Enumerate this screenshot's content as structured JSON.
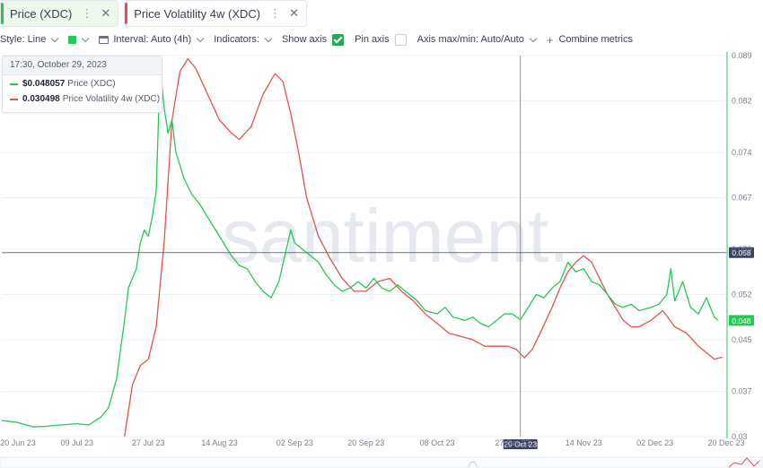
{
  "tabs": [
    {
      "label": "Price (XDC)",
      "color": "#26c953",
      "active": true
    },
    {
      "label": "Price Volatility 4w (XDC)",
      "color": "#e5534b",
      "active": false
    }
  ],
  "toolbar": {
    "style": "Style: Line",
    "interval": "Interval: Auto (4h)",
    "indicators": "Indicators:",
    "show_axis": "Show axis",
    "pin_axis": "Pin axis",
    "axis_maxmin": "Axis max/min: Auto/Auto",
    "combine": "Combine metrics"
  },
  "tooltip": {
    "date": "17:30, October 29, 2023",
    "rows": [
      {
        "value": "$0.048057",
        "label": "Price (XDC)",
        "color": "#26c953"
      },
      {
        "value": "0.030498",
        "label": "Price Volatility 4w (XDC)",
        "color": "#e5534b"
      }
    ]
  },
  "watermark": "santiment.",
  "chart_data": {
    "type": "line",
    "x_ticks": [
      "20 Jun 23",
      "09 Jul 23",
      "27 Jul 23",
      "14 Aug 23",
      "02 Sep 23",
      "20 Sep 23",
      "08 Oct 23",
      "27 Oct 23",
      "14 Nov 23",
      "02 Dec 23",
      "20 Dec 23"
    ],
    "x_range": [
      "2023-06-20",
      "2023-12-20"
    ],
    "y_ticks": [
      "0.089",
      "0.082",
      "0.074",
      "0.067",
      "0.059",
      "0.052",
      "0.045",
      "0.037",
      "0.03"
    ],
    "ylim": [
      0.03,
      0.089
    ],
    "crosshair": {
      "x_label": "29 Oct 23",
      "y_label": "0.058",
      "x_date": "2023-10-29",
      "y": 0.0585
    },
    "last_value_label": "0.048",
    "series": [
      {
        "name": "Price (XDC)",
        "color": "#26c953",
        "points": [
          [
            "2023-06-20",
            0.0325
          ],
          [
            "2023-06-24",
            0.0322
          ],
          [
            "2023-06-28",
            0.0315
          ],
          [
            "2023-07-01",
            0.0316
          ],
          [
            "2023-07-05",
            0.0318
          ],
          [
            "2023-07-09",
            0.032
          ],
          [
            "2023-07-12",
            0.0318
          ],
          [
            "2023-07-15",
            0.033
          ],
          [
            "2023-07-17",
            0.0345
          ],
          [
            "2023-07-19",
            0.039
          ],
          [
            "2023-07-21",
            0.048
          ],
          [
            "2023-07-22",
            0.053
          ],
          [
            "2023-07-24",
            0.056
          ],
          [
            "2023-07-25",
            0.06
          ],
          [
            "2023-07-26",
            0.062
          ],
          [
            "2023-07-27",
            0.061
          ],
          [
            "2023-07-28",
            0.064
          ],
          [
            "2023-07-29",
            0.068
          ],
          [
            "2023-07-30",
            0.087
          ],
          [
            "2023-07-31",
            0.081
          ],
          [
            "2023-08-01",
            0.077
          ],
          [
            "2023-08-02",
            0.079
          ],
          [
            "2023-08-03",
            0.074
          ],
          [
            "2023-08-05",
            0.07
          ],
          [
            "2023-08-07",
            0.0675
          ],
          [
            "2023-08-09",
            0.066
          ],
          [
            "2023-08-11",
            0.064
          ],
          [
            "2023-08-13",
            0.062
          ],
          [
            "2023-08-15",
            0.06
          ],
          [
            "2023-08-17",
            0.058
          ],
          [
            "2023-08-19",
            0.0565
          ],
          [
            "2023-08-21",
            0.056
          ],
          [
            "2023-08-23",
            0.054
          ],
          [
            "2023-08-25",
            0.0525
          ],
          [
            "2023-08-27",
            0.0515
          ],
          [
            "2023-08-29",
            0.054
          ],
          [
            "2023-09-01",
            0.062
          ],
          [
            "2023-09-02",
            0.06
          ],
          [
            "2023-09-04",
            0.059
          ],
          [
            "2023-09-06",
            0.058
          ],
          [
            "2023-09-08",
            0.057
          ],
          [
            "2023-09-10",
            0.055
          ],
          [
            "2023-09-12",
            0.0535
          ],
          [
            "2023-09-14",
            0.0525
          ],
          [
            "2023-09-16",
            0.053
          ],
          [
            "2023-09-18",
            0.054
          ],
          [
            "2023-09-20",
            0.053
          ],
          [
            "2023-09-22",
            0.0545
          ],
          [
            "2023-09-24",
            0.053
          ],
          [
            "2023-09-26",
            0.0525
          ],
          [
            "2023-09-28",
            0.0535
          ],
          [
            "2023-10-01",
            0.052
          ],
          [
            "2023-10-03",
            0.051
          ],
          [
            "2023-10-05",
            0.0495
          ],
          [
            "2023-10-08",
            0.049
          ],
          [
            "2023-10-10",
            0.05
          ],
          [
            "2023-10-12",
            0.0485
          ],
          [
            "2023-10-15",
            0.048
          ],
          [
            "2023-10-17",
            0.0485
          ],
          [
            "2023-10-19",
            0.0475
          ],
          [
            "2023-10-21",
            0.047
          ],
          [
            "2023-10-23",
            0.048
          ],
          [
            "2023-10-25",
            0.049
          ],
          [
            "2023-10-27",
            0.049
          ],
          [
            "2023-10-29",
            0.0481
          ],
          [
            "2023-10-31",
            0.05
          ],
          [
            "2023-11-02",
            0.052
          ],
          [
            "2023-11-04",
            0.0515
          ],
          [
            "2023-11-06",
            0.053
          ],
          [
            "2023-11-08",
            0.054
          ],
          [
            "2023-11-10",
            0.057
          ],
          [
            "2023-11-12",
            0.0555
          ],
          [
            "2023-11-14",
            0.056
          ],
          [
            "2023-11-16",
            0.054
          ],
          [
            "2023-11-18",
            0.0535
          ],
          [
            "2023-11-20",
            0.052
          ],
          [
            "2023-11-22",
            0.0505
          ],
          [
            "2023-11-24",
            0.05
          ],
          [
            "2023-11-26",
            0.0505
          ],
          [
            "2023-11-28",
            0.0495
          ],
          [
            "2023-12-01",
            0.05
          ],
          [
            "2023-12-03",
            0.0505
          ],
          [
            "2023-12-05",
            0.052
          ],
          [
            "2023-12-06",
            0.056
          ],
          [
            "2023-12-07",
            0.051
          ],
          [
            "2023-12-09",
            0.054
          ],
          [
            "2023-12-11",
            0.05
          ],
          [
            "2023-12-13",
            0.049
          ],
          [
            "2023-12-15",
            0.0515
          ],
          [
            "2023-12-17",
            0.0485
          ],
          [
            "2023-12-18",
            0.048
          ]
        ]
      },
      {
        "name": "Price Volatility 4w (XDC)",
        "color": "#e5534b",
        "points": [
          [
            "2023-07-21",
            0.03
          ],
          [
            "2023-07-23",
            0.038
          ],
          [
            "2023-07-25",
            0.041
          ],
          [
            "2023-07-27",
            0.042
          ],
          [
            "2023-07-29",
            0.047
          ],
          [
            "2023-07-31",
            0.06
          ],
          [
            "2023-08-02",
            0.079
          ],
          [
            "2023-08-04",
            0.0865
          ],
          [
            "2023-08-06",
            0.0885
          ],
          [
            "2023-08-08",
            0.087
          ],
          [
            "2023-08-11",
            0.083
          ],
          [
            "2023-08-14",
            0.079
          ],
          [
            "2023-08-17",
            0.077
          ],
          [
            "2023-08-19",
            0.076
          ],
          [
            "2023-08-22",
            0.078
          ],
          [
            "2023-08-25",
            0.083
          ],
          [
            "2023-08-28",
            0.0862
          ],
          [
            "2023-08-30",
            0.085
          ],
          [
            "2023-09-01",
            0.08
          ],
          [
            "2023-09-03",
            0.074
          ],
          [
            "2023-09-05",
            0.067
          ],
          [
            "2023-09-08",
            0.061
          ],
          [
            "2023-09-11",
            0.0575
          ],
          [
            "2023-09-14",
            0.0545
          ],
          [
            "2023-09-17",
            0.0525
          ],
          [
            "2023-09-20",
            0.0525
          ],
          [
            "2023-09-23",
            0.054
          ],
          [
            "2023-09-26",
            0.0545
          ],
          [
            "2023-09-29",
            0.0525
          ],
          [
            "2023-10-02",
            0.051
          ],
          [
            "2023-10-05",
            0.049
          ],
          [
            "2023-10-08",
            0.0475
          ],
          [
            "2023-10-11",
            0.046
          ],
          [
            "2023-10-14",
            0.0455
          ],
          [
            "2023-10-17",
            0.045
          ],
          [
            "2023-10-20",
            0.044
          ],
          [
            "2023-10-23",
            0.044
          ],
          [
            "2023-10-26",
            0.044
          ],
          [
            "2023-10-28",
            0.0435
          ],
          [
            "2023-10-30",
            0.0422
          ],
          [
            "2023-11-01",
            0.0435
          ],
          [
            "2023-11-03",
            0.046
          ],
          [
            "2023-11-06",
            0.05
          ],
          [
            "2023-11-08",
            0.053
          ],
          [
            "2023-11-10",
            0.0555
          ],
          [
            "2023-11-12",
            0.057
          ],
          [
            "2023-11-14",
            0.058
          ],
          [
            "2023-11-16",
            0.057
          ],
          [
            "2023-11-18",
            0.0545
          ],
          [
            "2023-11-20",
            0.052
          ],
          [
            "2023-11-22",
            0.05
          ],
          [
            "2023-11-24",
            0.048
          ],
          [
            "2023-11-26",
            0.047
          ],
          [
            "2023-11-28",
            0.047
          ],
          [
            "2023-12-01",
            0.048
          ],
          [
            "2023-12-04",
            0.0495
          ],
          [
            "2023-12-07",
            0.047
          ],
          [
            "2023-12-10",
            0.046
          ],
          [
            "2023-12-13",
            0.044
          ],
          [
            "2023-12-15",
            0.043
          ],
          [
            "2023-12-17",
            0.042
          ],
          [
            "2023-12-19",
            0.0423
          ]
        ]
      }
    ]
  }
}
